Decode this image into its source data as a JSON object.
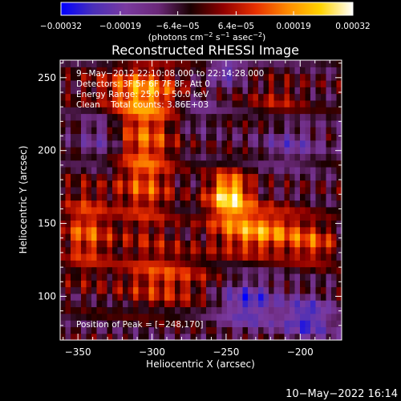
{
  "chart_data": {
    "type": "heatmap",
    "title": "Reconstructed RHESSI Image",
    "xlabel": "Heliocentric X (arcsec)",
    "ylabel": "Heliocentric Y (arcsec)",
    "xlim": [
      -362,
      -172
    ],
    "ylim": [
      70,
      262
    ],
    "x_ticks": [
      -350,
      -300,
      -250,
      -200
    ],
    "x_tick_labels": [
      "−350",
      "−300",
      "−250",
      "−200"
    ],
    "y_ticks": [
      100,
      150,
      200,
      250
    ],
    "y_tick_labels": [
      "100",
      "150",
      "200",
      "250"
    ],
    "colorbar": {
      "range": [
        -0.00032,
        0.00032
      ],
      "ticks": [
        -0.00032,
        -0.00019,
        -6.4e-05,
        6.4e-05,
        0.00019,
        0.00032
      ],
      "tick_labels": [
        "−0.00032",
        "−0.00019",
        "−6.4e−05",
        "6.4e−05",
        "0.00019",
        "0.00032"
      ],
      "unit_prefix": "(photons cm",
      "unit_sup1": "−2",
      "unit_mid": " s",
      "unit_sup2": "−1",
      "unit_mid2": " asec",
      "unit_sup3": "−2",
      "unit_suffix": ")",
      "stops": [
        "#0000ff",
        "#4a2fb8",
        "#7a3aa0",
        "#6a2878",
        "#1a0000",
        "#900000",
        "#e83000",
        "#ff8c00",
        "#ffd400",
        "#ffffff"
      ]
    },
    "annotations": [
      "9−May−2012 22:10:08.000 to 22:14:28.000",
      "Detectors: 3F 5F 6F 7F 8F, Att 0",
      "Energy Range: 25.0 − 50.0 keV",
      "Clean    Total counts: 3.86E+03"
    ],
    "peak_label": "Position of Peak = [−248,170]",
    "sources": [
      {
        "x": -248,
        "y": 170,
        "amp": 1.0,
        "sx": 10,
        "sy": 11
      },
      {
        "x": -228,
        "y": 145,
        "amp": 0.75,
        "sx": 22,
        "sy": 12
      },
      {
        "x": -305,
        "y": 195,
        "amp": 0.6,
        "sx": 14,
        "sy": 40
      },
      {
        "x": -345,
        "y": 145,
        "amp": 0.55,
        "sx": 12,
        "sy": 22
      },
      {
        "x": -310,
        "y": 240,
        "amp": 0.5,
        "sx": 25,
        "sy": 12
      },
      {
        "x": -290,
        "y": 112,
        "amp": 0.45,
        "sx": 22,
        "sy": 14
      },
      {
        "x": -190,
        "y": 135,
        "amp": 0.4,
        "sx": 12,
        "sy": 10
      },
      {
        "x": -215,
        "y": 235,
        "amp": 0.3,
        "sx": 14,
        "sy": 10
      },
      {
        "x": -235,
        "y": 95,
        "amp": -0.6,
        "sx": 14,
        "sy": 12
      },
      {
        "x": -195,
        "y": 85,
        "amp": -0.65,
        "sx": 12,
        "sy": 10
      },
      {
        "x": -250,
        "y": 255,
        "amp": -0.55,
        "sx": 8,
        "sy": 6
      },
      {
        "x": -205,
        "y": 205,
        "amp": -0.35,
        "sx": 14,
        "sy": 10
      },
      {
        "x": -335,
        "y": 210,
        "amp": -0.35,
        "sx": 10,
        "sy": 14
      },
      {
        "x": -270,
        "y": 230,
        "amp": -0.3,
        "sx": 10,
        "sy": 10
      }
    ]
  },
  "footer": {
    "timestamp": "10−May−2022 16:14"
  }
}
